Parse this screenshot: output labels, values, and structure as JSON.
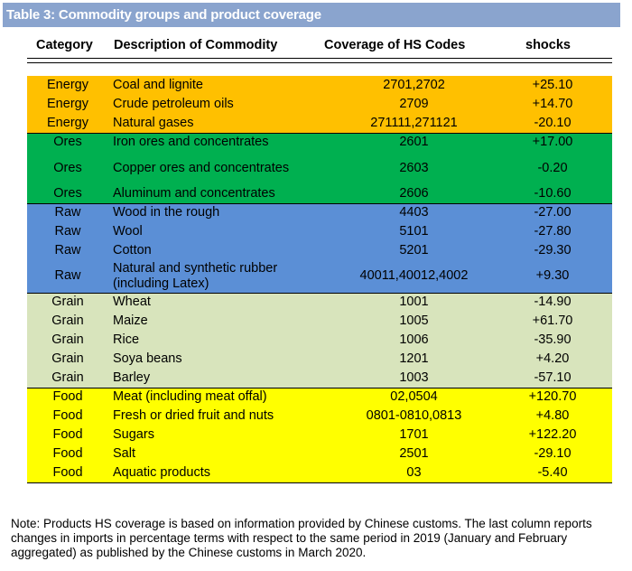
{
  "title": "Table 3: Commodity groups and product coverage",
  "headers": {
    "category": "Category",
    "description": "Description of Commodity",
    "coverage": "Coverage of HS Codes",
    "shocks": "shocks"
  },
  "group_colors": {
    "Energy": "#ffc000",
    "Ores": "#00b050",
    "Raw": "#5b8fd6",
    "Grain": "#d8e4bc",
    "Food": "#ffff00"
  },
  "rows": [
    {
      "category": "Energy",
      "description": "Coal and lignite",
      "hs": "2701,2702",
      "shock": "+25.10"
    },
    {
      "category": "Energy",
      "description": "Crude petroleum oils",
      "hs": "2709",
      "shock": "+14.70"
    },
    {
      "category": "Energy",
      "description": "Natural gases",
      "hs": "271111,271121",
      "shock": "-20.10"
    },
    {
      "category": "Ores",
      "description": "Iron ores and concentrates",
      "hs": "2601",
      "shock": "+17.00"
    },
    {
      "category": "Ores",
      "description": "Copper ores and concentrates",
      "hs": "2603",
      "shock": "-0.20"
    },
    {
      "category": "Ores",
      "description": "Aluminum and concentrates",
      "hs": "2606",
      "shock": "-10.60"
    },
    {
      "category": "Raw",
      "description": "Wood in the rough",
      "hs": "4403",
      "shock": "-27.00"
    },
    {
      "category": "Raw",
      "description": "Wool",
      "hs": "5101",
      "shock": "-27.80"
    },
    {
      "category": "Raw",
      "description": "Cotton",
      "hs": "5201",
      "shock": "-29.30"
    },
    {
      "category": "Raw",
      "description": "Natural and synthetic rubber (including Latex)",
      "hs": "40011,40012,4002",
      "shock": "+9.30"
    },
    {
      "category": "Grain",
      "description": "Wheat",
      "hs": "1001",
      "shock": "-14.90"
    },
    {
      "category": "Grain",
      "description": "Maize",
      "hs": "1005",
      "shock": "+61.70"
    },
    {
      "category": "Grain",
      "description": "Rice",
      "hs": "1006",
      "shock": "-35.90"
    },
    {
      "category": "Grain",
      "description": "Soya beans",
      "hs": "1201",
      "shock": "+4.20"
    },
    {
      "category": "Grain",
      "description": "Barley",
      "hs": "1003",
      "shock": "-57.10"
    },
    {
      "category": "Food",
      "description": "Meat (including meat offal)",
      "hs": "02,0504",
      "shock": "+120.70"
    },
    {
      "category": "Food",
      "description": "Fresh or dried fruit and nuts",
      "hs": "0801-0810,0813",
      "shock": "+4.80"
    },
    {
      "category": "Food",
      "description": "Sugars",
      "hs": "1701",
      "shock": "+122.20"
    },
    {
      "category": "Food",
      "description": "Salt",
      "hs": "2501",
      "shock": "-29.10"
    },
    {
      "category": "Food",
      "description": "Aquatic products",
      "hs": "03",
      "shock": "-5.40"
    }
  ],
  "note": "Note: Products HS coverage is based on information provided by Chinese customs. The last column reports changes in imports in percentage terms with respect to the same period in 2019 (January and February aggregated) as published by the Chinese customs in March 2020."
}
